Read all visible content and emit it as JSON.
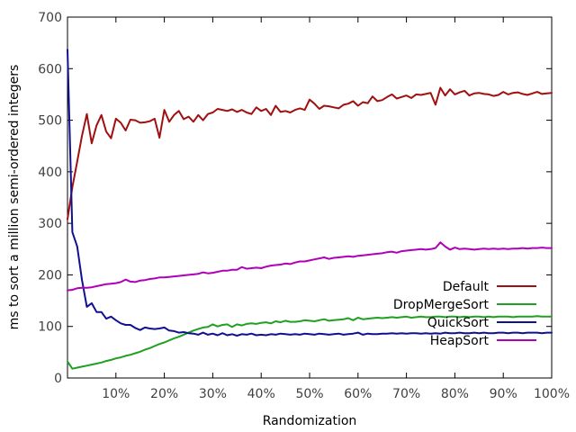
{
  "chart_data": {
    "type": "line",
    "title": "",
    "xlabel": "Randomization",
    "ylabel": "ms to sort a million semi-ordered integers",
    "xlim": [
      0,
      100
    ],
    "ylim": [
      0,
      700
    ],
    "xticks": [
      10,
      20,
      30,
      40,
      50,
      60,
      70,
      80,
      90,
      100
    ],
    "xtick_labels": [
      "10%",
      "20%",
      "30%",
      "40%",
      "50%",
      "60%",
      "70%",
      "80%",
      "90%",
      "100%"
    ],
    "yticks": [
      0,
      100,
      200,
      300,
      400,
      500,
      600,
      700
    ],
    "ytick_labels": [
      "0",
      "100",
      "200",
      "300",
      "400",
      "500",
      "600",
      "700"
    ],
    "grid": false,
    "legend_position": "bottom-right",
    "x": [
      0,
      1,
      2,
      3,
      4,
      5,
      6,
      7,
      8,
      9,
      10,
      11,
      12,
      13,
      14,
      15,
      16,
      17,
      18,
      19,
      20,
      21,
      22,
      23,
      24,
      25,
      26,
      27,
      28,
      29,
      30,
      31,
      32,
      33,
      34,
      35,
      36,
      37,
      38,
      39,
      40,
      41,
      42,
      43,
      44,
      45,
      46,
      47,
      48,
      49,
      50,
      51,
      52,
      53,
      54,
      55,
      56,
      57,
      58,
      59,
      60,
      61,
      62,
      63,
      64,
      65,
      66,
      67,
      68,
      69,
      70,
      71,
      72,
      73,
      74,
      75,
      76,
      77,
      78,
      79,
      80,
      81,
      82,
      83,
      84,
      85,
      86,
      87,
      88,
      89,
      90,
      91,
      92,
      93,
      94,
      95,
      96,
      97,
      98,
      99,
      100
    ],
    "series": [
      {
        "name": "Default",
        "color": "#a01010",
        "values": [
          308,
          370,
          420,
          470,
          512,
          455,
          490,
          510,
          478,
          465,
          503,
          495,
          480,
          501,
          500,
          495,
          496,
          498,
          503,
          466,
          520,
          497,
          510,
          518,
          502,
          507,
          497,
          510,
          500,
          512,
          515,
          522,
          520,
          518,
          521,
          516,
          520,
          515,
          512,
          525,
          518,
          522,
          510,
          528,
          516,
          518,
          515,
          520,
          523,
          520,
          540,
          532,
          522,
          528,
          527,
          525,
          523,
          530,
          532,
          537,
          528,
          535,
          533,
          546,
          537,
          539,
          545,
          550,
          542,
          545,
          548,
          543,
          550,
          549,
          551,
          553,
          530,
          563,
          548,
          560,
          550,
          554,
          557,
          548,
          552,
          553,
          551,
          550,
          547,
          549,
          555,
          550,
          553,
          554,
          551,
          549,
          552,
          555,
          551,
          552,
          553
        ]
      },
      {
        "name": "DropMergeSort",
        "color": "#20a020",
        "values": [
          32,
          18,
          20,
          22,
          24,
          26,
          28,
          30,
          33,
          35,
          38,
          40,
          43,
          45,
          48,
          51,
          55,
          58,
          62,
          66,
          69,
          73,
          77,
          80,
          84,
          88,
          92,
          95,
          98,
          99,
          104,
          100,
          103,
          104,
          99,
          104,
          102,
          105,
          106,
          105,
          107,
          108,
          106,
          110,
          108,
          111,
          109,
          109,
          110,
          112,
          111,
          110,
          112,
          114,
          111,
          112,
          113,
          114,
          116,
          112,
          117,
          114,
          115,
          116,
          117,
          116,
          117,
          118,
          117,
          118,
          119,
          117,
          118,
          119,
          118,
          118,
          119,
          119,
          118,
          119,
          119,
          118,
          119,
          118,
          119,
          119,
          118,
          119,
          118,
          119,
          119,
          119,
          118,
          119,
          119,
          119,
          119,
          120,
          119,
          119,
          119
        ]
      },
      {
        "name": "QuickSort",
        "color": "#101090",
        "values": [
          637,
          283,
          255,
          190,
          138,
          145,
          128,
          128,
          115,
          119,
          112,
          106,
          103,
          103,
          97,
          93,
          98,
          96,
          95,
          96,
          98,
          92,
          91,
          88,
          89,
          87,
          86,
          84,
          88,
          84,
          86,
          83,
          87,
          83,
          85,
          82,
          85,
          84,
          86,
          83,
          84,
          83,
          85,
          84,
          86,
          85,
          84,
          85,
          84,
          86,
          85,
          84,
          86,
          85,
          84,
          85,
          86,
          84,
          85,
          86,
          88,
          84,
          86,
          85,
          85,
          86,
          86,
          87,
          86,
          87,
          86,
          87,
          87,
          86,
          87,
          86,
          87,
          86,
          88,
          87,
          87,
          88,
          87,
          87,
          88,
          87,
          88,
          87,
          87,
          88,
          88,
          87,
          88,
          88,
          87,
          88,
          88,
          88,
          87,
          88,
          88
        ]
      },
      {
        "name": "HeapSort",
        "color": "#b000b8",
        "values": [
          170,
          171,
          174,
          175,
          175,
          176,
          178,
          180,
          182,
          183,
          184,
          186,
          191,
          187,
          186,
          189,
          190,
          192,
          193,
          195,
          195,
          196,
          197,
          198,
          199,
          200,
          201,
          202,
          205,
          203,
          204,
          206,
          208,
          208,
          210,
          210,
          215,
          212,
          213,
          214,
          213,
          216,
          218,
          219,
          220,
          222,
          221,
          224,
          226,
          226,
          228,
          230,
          232,
          234,
          231,
          233,
          234,
          235,
          236,
          235,
          237,
          238,
          239,
          240,
          241,
          242,
          244,
          245,
          243,
          246,
          247,
          248,
          249,
          250,
          249,
          250,
          252,
          263,
          255,
          249,
          253,
          250,
          251,
          250,
          249,
          250,
          251,
          250,
          251,
          250,
          251,
          250,
          251,
          251,
          252,
          251,
          252,
          252,
          253,
          252,
          252
        ]
      }
    ]
  }
}
